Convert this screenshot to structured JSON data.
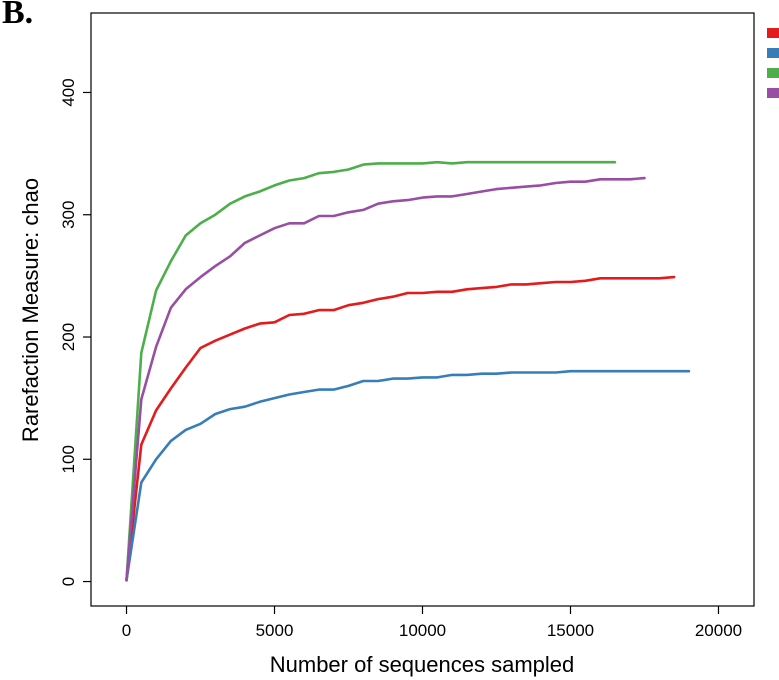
{
  "panel_label": "B.",
  "chart_data": {
    "type": "line",
    "title": "",
    "xlabel": "Number of sequences sampled",
    "ylabel": "Rarefaction Measure: chao",
    "xlim": [
      -1200,
      21200
    ],
    "ylim": [
      -20,
      465
    ],
    "xticks": [
      0,
      5000,
      10000,
      15000,
      20000
    ],
    "xtick_labels": [
      "0",
      "5000",
      "10000",
      "15000",
      "20000"
    ],
    "yticks": [
      0,
      100,
      200,
      300,
      400
    ],
    "ytick_labels": [
      "0",
      "100",
      "200",
      "300",
      "400"
    ],
    "grid": false,
    "legend_placement": "right, outside plot (top)",
    "series": [
      {
        "color": "#e41a1c",
        "x": [
          1,
          500,
          1000,
          1500,
          2000,
          2500,
          3000,
          3500,
          4000,
          4500,
          5000,
          5500,
          6000,
          6500,
          7000,
          7500,
          8000,
          8500,
          9000,
          9500,
          10000,
          10500,
          11000,
          11500,
          12000,
          12500,
          13000,
          13500,
          14000,
          14500,
          15000,
          15500,
          16000,
          16500,
          17000,
          17500,
          18000,
          18500
        ],
        "y": [
          1,
          112,
          140,
          158,
          175,
          191,
          197,
          202,
          207,
          211,
          212,
          218,
          219,
          222,
          222,
          226,
          228,
          231,
          233,
          236,
          236,
          237,
          237,
          239,
          240,
          241,
          243,
          243,
          244,
          245,
          245,
          246,
          248,
          248,
          248,
          248,
          248,
          249
        ]
      },
      {
        "color": "#377eb8",
        "x": [
          1,
          500,
          1000,
          1500,
          2000,
          2500,
          3000,
          3500,
          4000,
          4500,
          5000,
          5500,
          6000,
          6500,
          7000,
          7500,
          8000,
          8500,
          9000,
          9500,
          10000,
          10500,
          11000,
          11500,
          12000,
          12500,
          13000,
          13500,
          14000,
          14500,
          15000,
          15500,
          16000,
          16500,
          17000,
          17500,
          18000,
          18500,
          19000
        ],
        "y": [
          1,
          81,
          100,
          115,
          124,
          129,
          137,
          141,
          143,
          147,
          150,
          153,
          155,
          157,
          157,
          160,
          164,
          164,
          166,
          166,
          167,
          167,
          169,
          169,
          170,
          170,
          171,
          171,
          171,
          171,
          172,
          172,
          172,
          172,
          172,
          172,
          172,
          172,
          172
        ]
      },
      {
        "color": "#4daf4a",
        "x": [
          1,
          500,
          1000,
          1500,
          2000,
          2500,
          3000,
          3500,
          4000,
          4500,
          5000,
          5500,
          6000,
          6500,
          7000,
          7500,
          8000,
          8500,
          9000,
          9500,
          10000,
          10500,
          11000,
          11500,
          12000,
          12500,
          13000,
          13500,
          14000,
          14500,
          15000,
          15500,
          16000,
          16500
        ],
        "y": [
          1,
          187,
          238,
          262,
          283,
          293,
          300,
          309,
          315,
          319,
          324,
          328,
          330,
          334,
          335,
          337,
          341,
          342,
          342,
          342,
          342,
          343,
          342,
          343,
          343,
          343,
          343,
          343,
          343,
          343,
          343,
          343,
          343,
          343
        ]
      },
      {
        "color": "#984ea3",
        "x": [
          1,
          500,
          1000,
          1500,
          2000,
          2500,
          3000,
          3500,
          4000,
          4500,
          5000,
          5500,
          6000,
          6500,
          7000,
          7500,
          8000,
          8500,
          9000,
          9500,
          10000,
          10500,
          11000,
          11500,
          12000,
          12500,
          13000,
          13500,
          14000,
          14500,
          15000,
          15500,
          16000,
          16500,
          17000,
          17500
        ],
        "y": [
          1,
          149,
          192,
          224,
          239,
          249,
          258,
          266,
          277,
          283,
          289,
          293,
          293,
          299,
          299,
          302,
          304,
          309,
          311,
          312,
          314,
          315,
          315,
          317,
          319,
          321,
          322,
          323,
          324,
          326,
          327,
          327,
          329,
          329,
          329,
          330
        ]
      }
    ]
  }
}
